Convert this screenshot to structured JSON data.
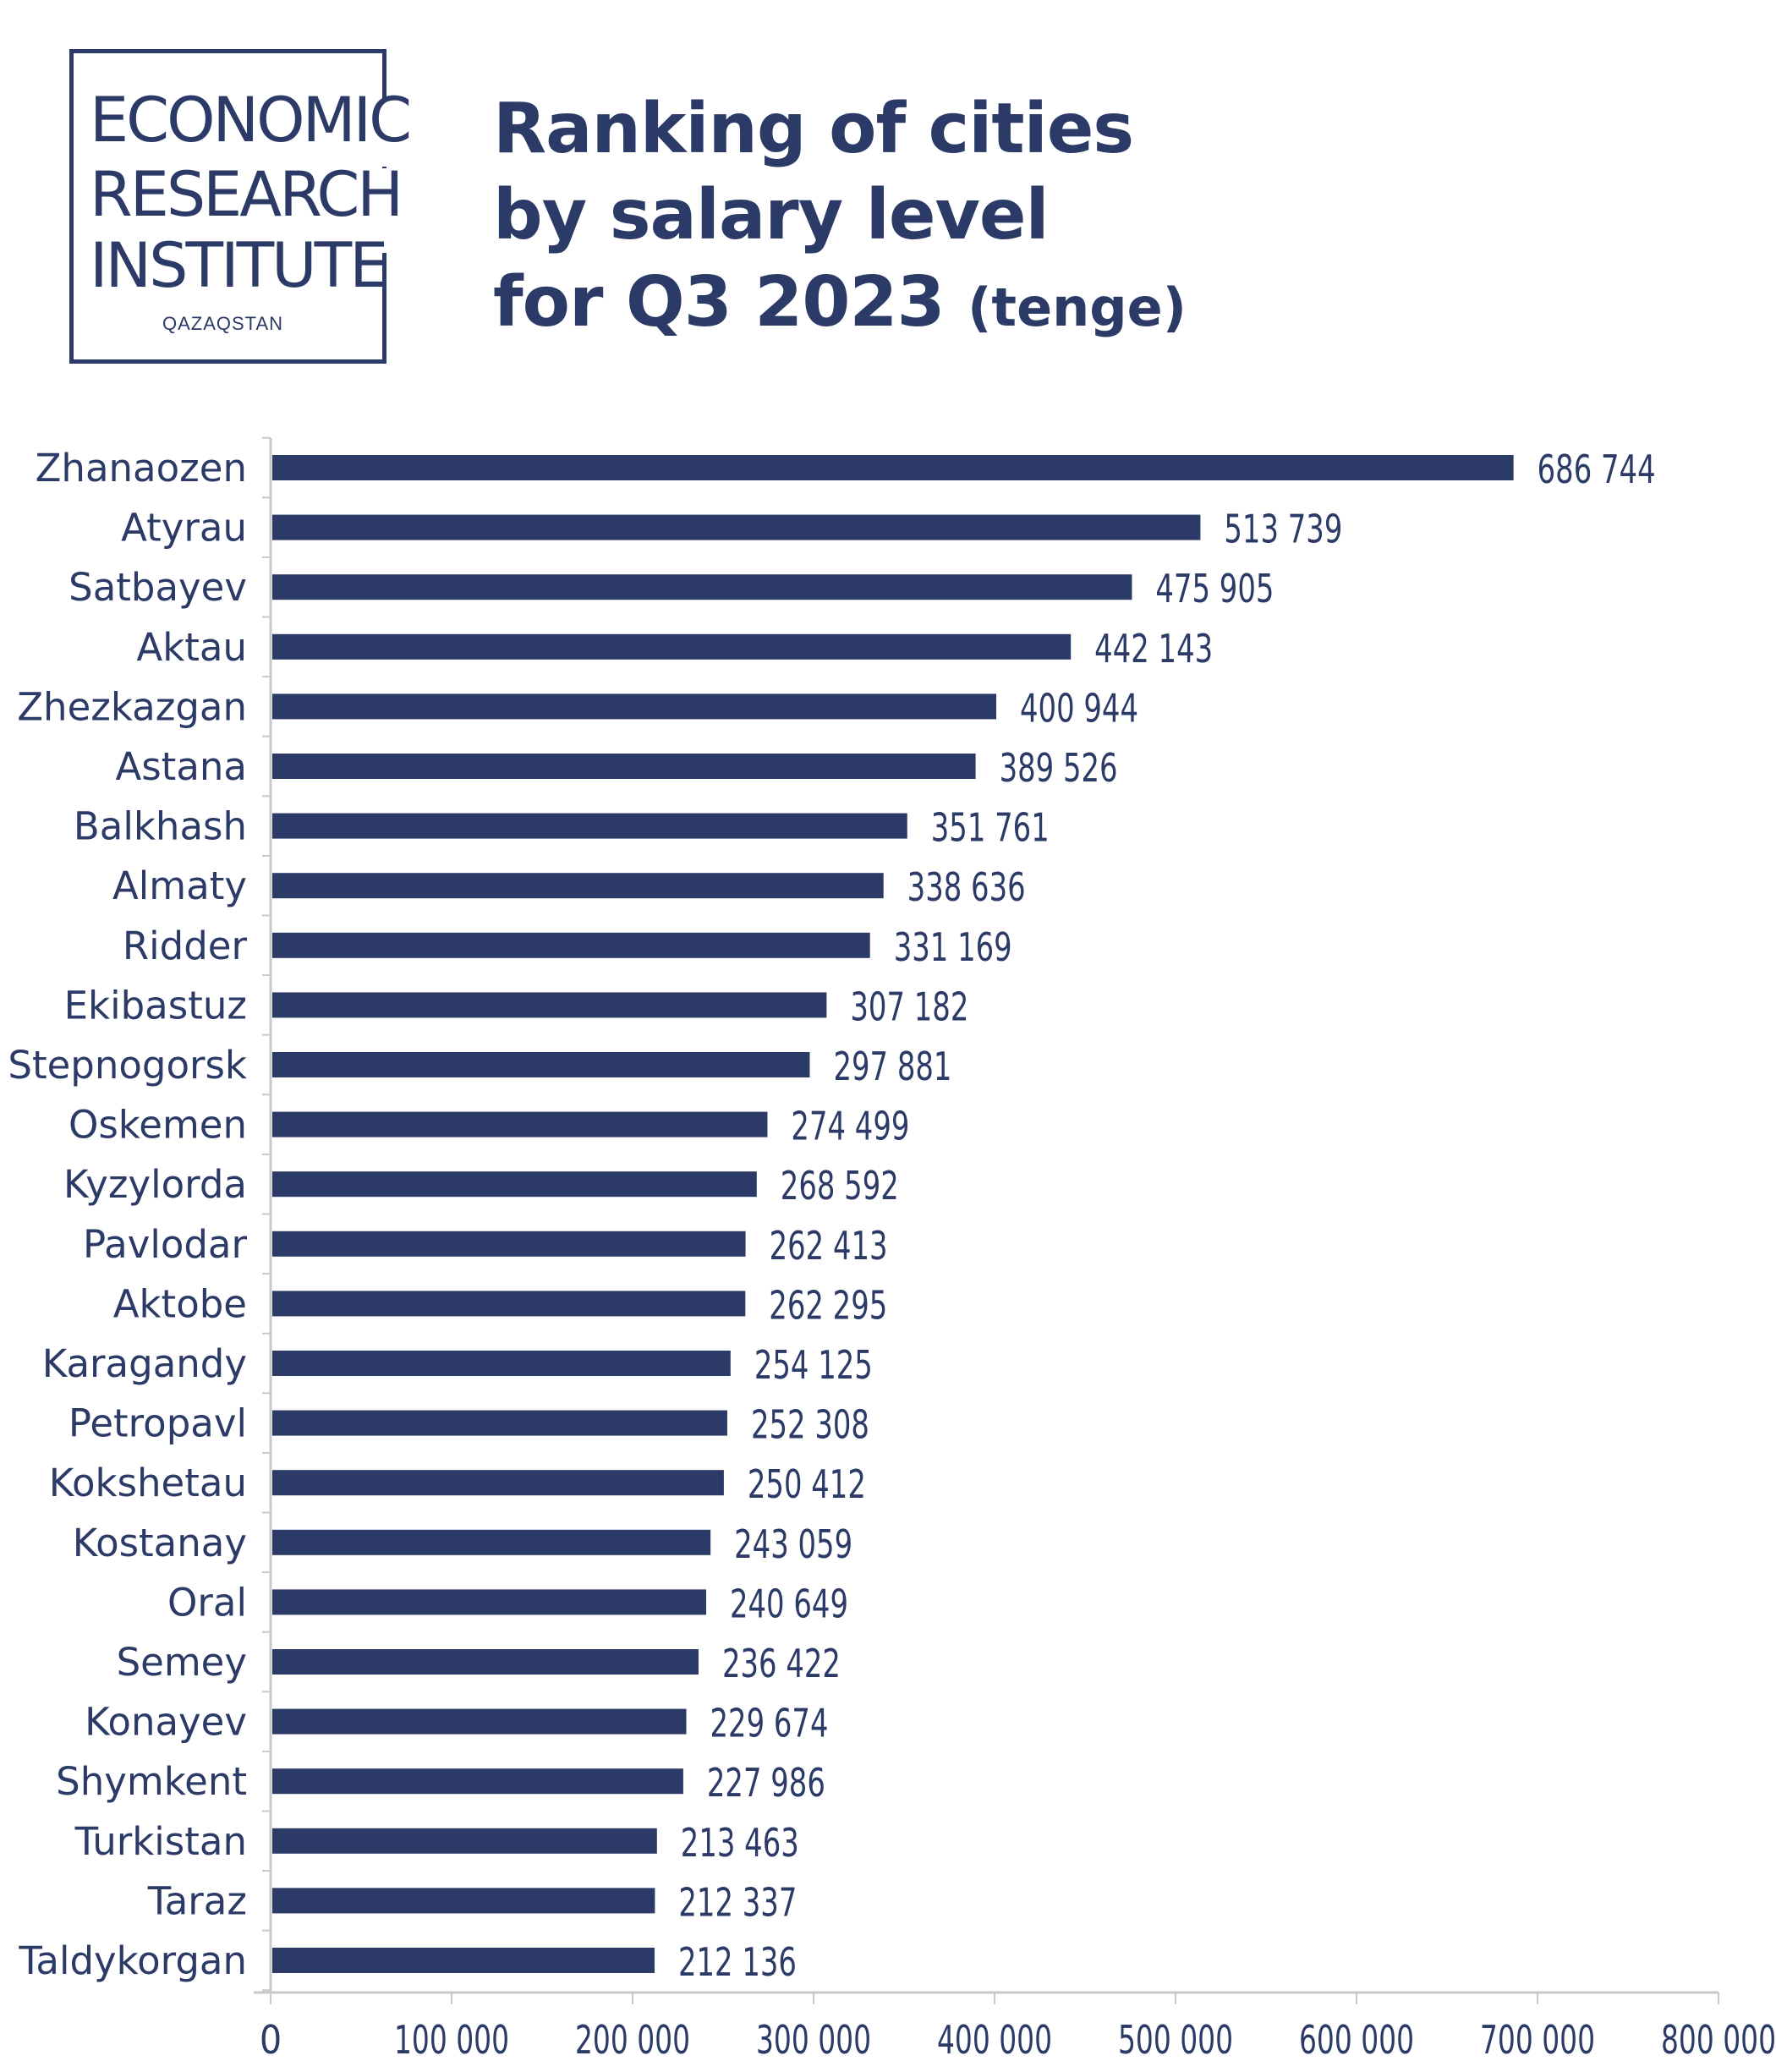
{
  "logo": {
    "line1": "ECONOMIC",
    "line2": "RESEARCH",
    "line3": "INSTITUTE",
    "sub": "QAZAQSTAN"
  },
  "title": {
    "line1": "Ranking of cities",
    "line2": "by salary level",
    "line3": "for Q3 2023",
    "unit": "(tenge)"
  },
  "colors": {
    "bar": "#2b3a66",
    "text": "#2b3a66",
    "axis": "#c8c8c8"
  },
  "chart_data": {
    "type": "bar",
    "orientation": "horizontal",
    "categories": [
      "Zhanaozen",
      "Atyrau",
      "Satbayev",
      "Aktau",
      "Zhezkazgan",
      "Astana",
      "Balkhash",
      "Almaty",
      "Ridder",
      "Ekibastuz",
      "Stepnogorsk",
      "Oskemen",
      "Kyzylorda",
      "Pavlodar",
      "Aktobe",
      "Karagandy",
      "Petropavl",
      "Kokshetau",
      "Kostanay",
      "Oral",
      "Semey",
      "Konayev",
      "Shymkent",
      "Turkistan",
      "Taraz",
      "Taldykorgan"
    ],
    "values": [
      686744,
      513739,
      475905,
      442143,
      400944,
      389526,
      351761,
      338636,
      331169,
      307182,
      297881,
      274499,
      268592,
      262413,
      262295,
      254125,
      252308,
      250412,
      243059,
      240649,
      236422,
      229674,
      227986,
      213463,
      212337,
      212136
    ],
    "value_labels": [
      "686 744",
      "513 739",
      "475 905",
      "442 143",
      "400 944",
      "389 526",
      "351 761",
      "338 636",
      "331 169",
      "307 182",
      "297 881",
      "274 499",
      "268 592",
      "262 413",
      "262 295",
      "254 125",
      "252 308",
      "250 412",
      "243 059",
      "240 649",
      "236 422",
      "229 674",
      "227 986",
      "213 463",
      "212 337",
      "212 136"
    ],
    "xlim": [
      0,
      800000
    ],
    "xticks": [
      0,
      100000,
      200000,
      300000,
      400000,
      500000,
      600000,
      700000,
      800000
    ],
    "xtick_labels": [
      "0",
      "100 000",
      "200 000",
      "300 000",
      "400 000",
      "500 000",
      "600 000",
      "700 000",
      "800 000"
    ],
    "grid": false,
    "legend": "none"
  }
}
